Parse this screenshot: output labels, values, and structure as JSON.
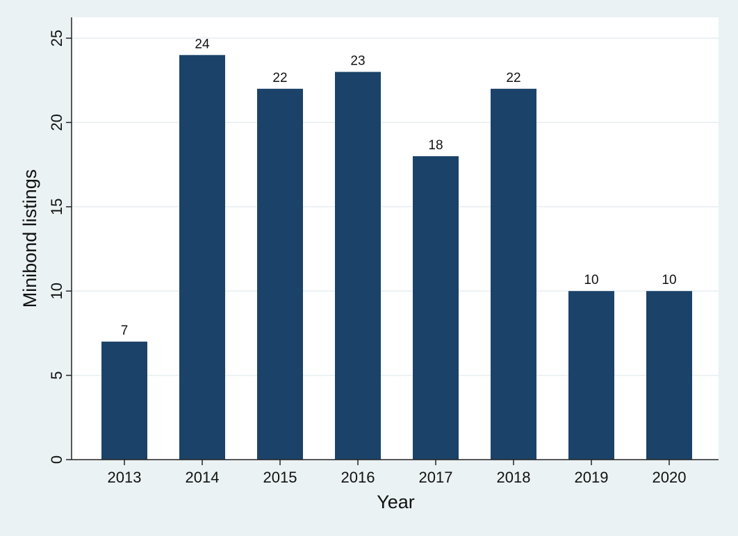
{
  "chart_data": {
    "type": "bar",
    "title": "",
    "xlabel": "Year",
    "ylabel": "Minibond listings",
    "categories": [
      "2013",
      "2014",
      "2015",
      "2016",
      "2017",
      "2018",
      "2019",
      "2020"
    ],
    "values": [
      7,
      24,
      22,
      23,
      18,
      22,
      10,
      10
    ],
    "ylim": [
      0,
      25
    ],
    "yticks": [
      0,
      5,
      10,
      15,
      20,
      25
    ],
    "grid": true,
    "legend": "none",
    "bar_color": "#1b4369",
    "background_color": "#eaf2f3",
    "plot_background_color": "#ffffff",
    "grid_color": "#e6eef0"
  }
}
